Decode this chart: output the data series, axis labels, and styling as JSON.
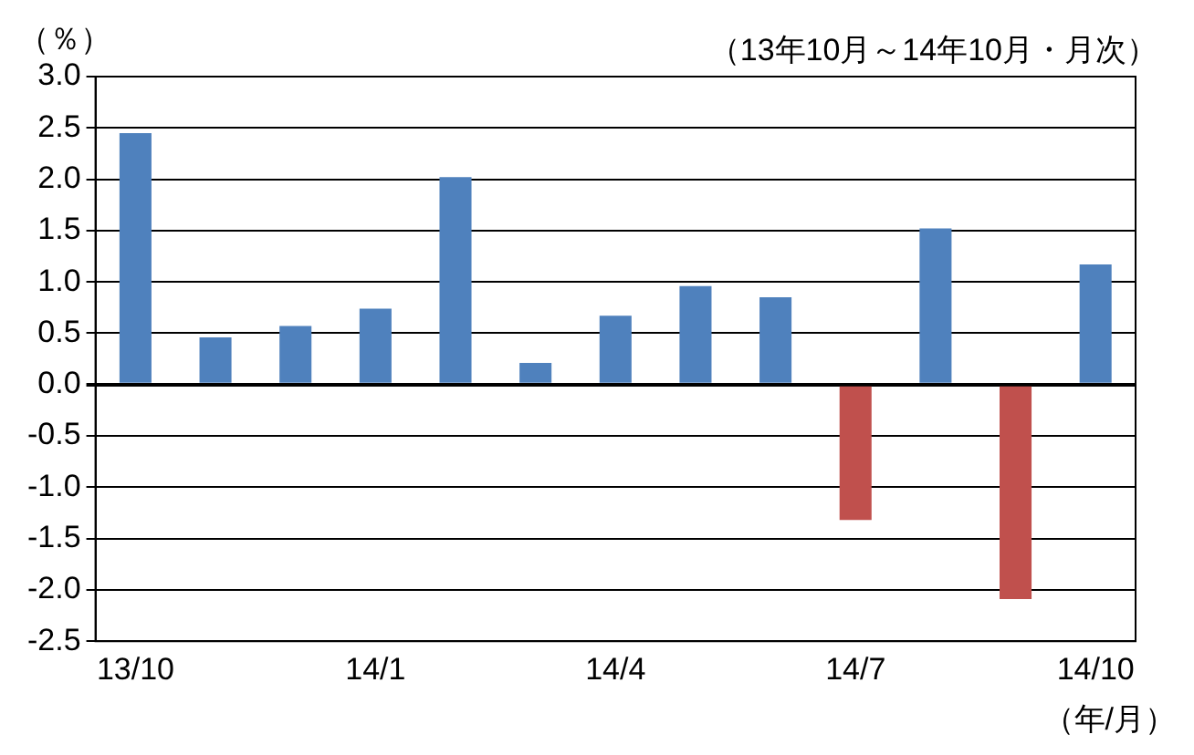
{
  "chart_data": {
    "type": "bar",
    "subtitle": "（13年10月～14年10月・月次）",
    "ylabel": "（％）",
    "xlabel": "（年/月）",
    "categories": [
      "13/10",
      null,
      null,
      "14/1",
      null,
      null,
      "14/4",
      null,
      null,
      "14/7",
      null,
      null,
      "14/10"
    ],
    "values": [
      2.45,
      0.46,
      0.57,
      0.74,
      2.02,
      0.21,
      0.67,
      0.96,
      0.85,
      -1.32,
      1.52,
      -2.09,
      1.17
    ],
    "colors": [
      "#4f81bd",
      "#4f81bd",
      "#4f81bd",
      "#4f81bd",
      "#4f81bd",
      "#4f81bd",
      "#4f81bd",
      "#4f81bd",
      "#4f81bd",
      "#c0504d",
      "#4f81bd",
      "#c0504d",
      "#4f81bd"
    ],
    "ylim": [
      -2.5,
      3.0
    ],
    "yticks": [
      {
        "value": -2.5,
        "label": "-2.5"
      },
      {
        "value": -2.0,
        "label": "-2.0"
      },
      {
        "value": -1.5,
        "label": "-1.5"
      },
      {
        "value": -1.0,
        "label": "-1.0"
      },
      {
        "value": -0.5,
        "label": "-0.5"
      },
      {
        "value": 0,
        "label": "0.0"
      },
      {
        "value": 0.5,
        "label": "0.5"
      },
      {
        "value": 1.0,
        "label": "1.0"
      },
      {
        "value": 1.5,
        "label": "1.5"
      },
      {
        "value": 2.0,
        "label": "2.0"
      },
      {
        "value": 2.5,
        "label": "2.5"
      },
      {
        "value": 3.0,
        "label": "3.0"
      }
    ],
    "grid": "y"
  }
}
